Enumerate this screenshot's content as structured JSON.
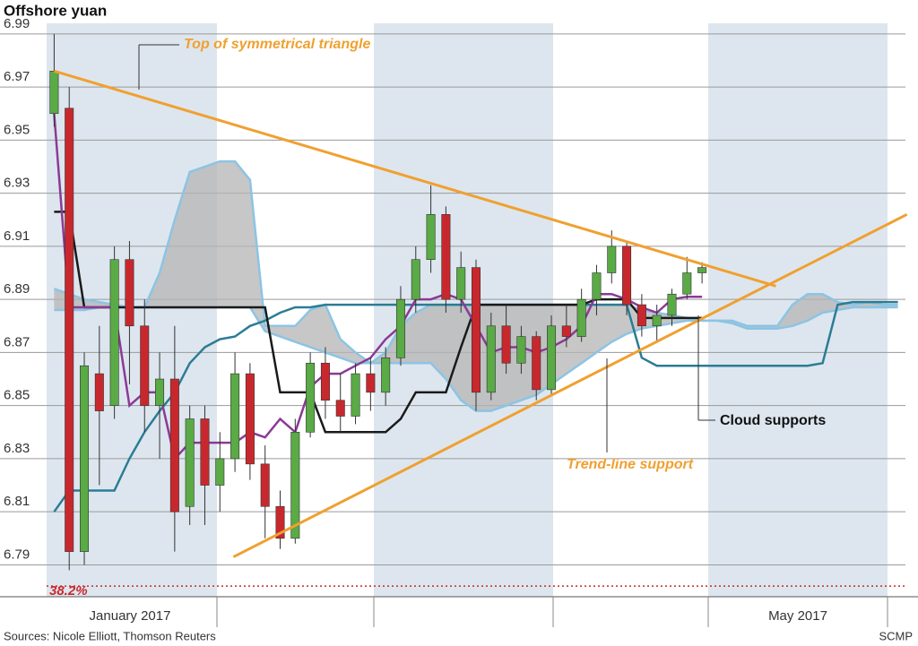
{
  "chart_data": {
    "type": "candlestick",
    "title": "Offshore yuan",
    "source": "Sources: Nicole Elliott, Thomson Reuters",
    "credit": "SCMP",
    "x_labels": [
      "January 2017",
      "May 2017"
    ],
    "ylim": [
      6.778,
      6.994
    ],
    "yticks": [
      6.79,
      6.81,
      6.83,
      6.85,
      6.87,
      6.89,
      6.91,
      6.93,
      6.95,
      6.97,
      6.99
    ],
    "grid": true,
    "categories": [
      null,
      null,
      null,
      null,
      null,
      null,
      null,
      null,
      null,
      null,
      null,
      null,
      null,
      null,
      null,
      null,
      null,
      null,
      null,
      null,
      null,
      null,
      null,
      null,
      null,
      null,
      null,
      null,
      null,
      null,
      null,
      null,
      null,
      null,
      null,
      null,
      null,
      null,
      null,
      null,
      null,
      null,
      null,
      null,
      null,
      null,
      null,
      null,
      null,
      null,
      null,
      null,
      null,
      null,
      null,
      null,
      null
    ],
    "up_color": "#5aaa46",
    "down_color": "#c8282d",
    "open": [
      6.96,
      6.962,
      6.795,
      6.862,
      6.85,
      6.905,
      6.88,
      6.85,
      6.86,
      6.812,
      6.845,
      6.82,
      6.83,
      6.862,
      6.828,
      6.812,
      6.8,
      6.84,
      6.866,
      6.852,
      6.846,
      6.862,
      6.855,
      6.868,
      6.89,
      6.905,
      6.922,
      6.89,
      6.902,
      6.855,
      6.88,
      6.866,
      6.876,
      6.856,
      6.88,
      6.876,
      6.89,
      6.9,
      6.91,
      6.888,
      6.88,
      6.884,
      6.892,
      6.9,
      null,
      null,
      null,
      null,
      null,
      null,
      null,
      null,
      null,
      null,
      null,
      null,
      null
    ],
    "high": [
      6.99,
      6.97,
      6.87,
      6.88,
      6.91,
      6.912,
      6.89,
      6.87,
      6.88,
      6.85,
      6.85,
      6.84,
      6.87,
      6.866,
      6.835,
      6.818,
      6.845,
      6.87,
      6.872,
      6.862,
      6.866,
      6.868,
      6.872,
      6.895,
      6.91,
      6.933,
      6.925,
      6.908,
      6.905,
      6.885,
      6.888,
      6.88,
      6.878,
      6.884,
      6.888,
      6.894,
      6.903,
      6.916,
      6.912,
      6.892,
      6.888,
      6.894,
      6.906,
      6.904,
      null,
      null,
      null,
      null,
      null,
      null,
      null,
      null,
      null,
      null,
      null,
      null,
      null
    ],
    "low": [
      6.955,
      6.788,
      6.79,
      6.82,
      6.845,
      6.858,
      6.84,
      6.83,
      6.795,
      6.805,
      6.805,
      6.81,
      6.825,
      6.822,
      6.8,
      6.796,
      6.798,
      6.838,
      6.845,
      6.84,
      6.843,
      6.848,
      6.85,
      6.865,
      6.885,
      6.9,
      6.885,
      6.885,
      6.848,
      6.852,
      6.862,
      6.862,
      6.852,
      6.854,
      6.872,
      6.874,
      6.884,
      6.896,
      6.884,
      6.876,
      6.874,
      6.88,
      6.89,
      6.896,
      null,
      null,
      null,
      null,
      null,
      null,
      null,
      null,
      null,
      null,
      null,
      null,
      null
    ],
    "close": [
      6.976,
      6.795,
      6.865,
      6.848,
      6.905,
      6.88,
      6.85,
      6.86,
      6.81,
      6.845,
      6.82,
      6.83,
      6.862,
      6.828,
      6.812,
      6.8,
      6.84,
      6.866,
      6.852,
      6.846,
      6.862,
      6.855,
      6.868,
      6.89,
      6.905,
      6.922,
      6.89,
      6.902,
      6.855,
      6.88,
      6.866,
      6.876,
      6.856,
      6.88,
      6.876,
      6.89,
      6.9,
      6.91,
      6.888,
      6.88,
      6.884,
      6.892,
      6.9,
      6.902,
      null,
      null,
      null,
      null,
      null,
      null,
      null,
      null,
      null,
      null,
      null,
      null,
      null
    ],
    "cloud": {
      "fill": "#b4b4b4",
      "edge": "#8cc4e4",
      "top": [
        6.894,
        6.892,
        6.89,
        6.889,
        6.888,
        6.887,
        6.887,
        6.9,
        6.92,
        6.938,
        6.94,
        6.942,
        6.942,
        6.935,
        6.88,
        6.88,
        6.88,
        6.886,
        6.888,
        6.875,
        6.87,
        6.866,
        6.87,
        6.88,
        6.885,
        6.888,
        6.888,
        6.888,
        6.888,
        6.888,
        6.888,
        6.888,
        6.888,
        6.888,
        6.888,
        6.888,
        6.888,
        6.888,
        6.888,
        6.886,
        6.885,
        6.884,
        6.883,
        6.882,
        6.882,
        6.882,
        6.88,
        6.88,
        6.88,
        6.888,
        6.892,
        6.892,
        6.889,
        6.888,
        6.889,
        6.888,
        6.888
      ],
      "bottom": [
        6.886,
        6.886,
        6.886,
        6.887,
        6.887,
        6.887,
        6.887,
        6.887,
        6.887,
        6.887,
        6.887,
        6.887,
        6.887,
        6.887,
        6.878,
        6.876,
        6.874,
        6.872,
        6.87,
        6.868,
        6.866,
        6.866,
        6.866,
        6.866,
        6.866,
        6.866,
        6.86,
        6.852,
        6.848,
        6.848,
        6.85,
        6.852,
        6.854,
        6.858,
        6.862,
        6.866,
        6.87,
        6.874,
        6.877,
        6.879,
        6.88,
        6.881,
        6.882,
        6.882,
        6.882,
        6.881,
        6.879,
        6.879,
        6.879,
        6.88,
        6.882,
        6.885,
        6.886,
        6.887,
        6.887,
        6.887,
        6.887
      ]
    },
    "lines": [
      {
        "color": "#2b7c95",
        "values": [
          6.81,
          6.818,
          6.818,
          6.818,
          6.818,
          6.83,
          6.84,
          6.848,
          6.855,
          6.866,
          6.872,
          6.875,
          6.876,
          6.88,
          6.882,
          6.885,
          6.887,
          6.887,
          6.888,
          6.888,
          6.888,
          6.888,
          6.888,
          6.888,
          6.888,
          6.888,
          6.888,
          6.888,
          6.888,
          6.888,
          6.888,
          6.888,
          6.888,
          6.888,
          6.888,
          6.888,
          6.888,
          6.888,
          6.888,
          6.868,
          6.865,
          6.865,
          6.865,
          6.865,
          6.865,
          6.865,
          6.865,
          6.865,
          6.865,
          6.865,
          6.865,
          6.866,
          6.888,
          6.889,
          6.889,
          6.889,
          6.889
        ]
      },
      {
        "color": "#1a1a1a",
        "values": [
          6.923,
          6.923,
          6.887,
          6.887,
          6.887,
          6.887,
          6.887,
          6.887,
          6.887,
          6.887,
          6.887,
          6.887,
          6.887,
          6.887,
          6.887,
          6.855,
          6.855,
          6.855,
          6.84,
          6.84,
          6.84,
          6.84,
          6.84,
          6.845,
          6.855,
          6.855,
          6.855,
          6.872,
          6.888,
          6.888,
          6.888,
          6.888,
          6.888,
          6.888,
          6.888,
          6.888,
          6.89,
          6.89,
          6.89,
          6.883,
          6.883,
          6.883,
          6.883,
          6.883,
          null,
          null,
          null,
          null,
          null,
          null,
          null,
          null,
          null,
          null,
          null,
          null,
          null
        ]
      },
      {
        "color": "#8b3a96",
        "values": [
          6.96,
          6.887,
          6.887,
          6.887,
          6.887,
          6.85,
          6.855,
          6.855,
          6.83,
          6.836,
          6.836,
          6.836,
          6.836,
          6.84,
          6.838,
          6.845,
          6.84,
          6.857,
          6.862,
          6.862,
          6.865,
          6.868,
          6.875,
          6.88,
          6.89,
          6.89,
          6.892,
          6.89,
          6.88,
          6.87,
          6.872,
          6.872,
          6.87,
          6.872,
          6.875,
          6.88,
          6.892,
          6.892,
          6.89,
          6.887,
          6.885,
          6.89,
          6.891,
          6.891,
          null,
          null,
          null,
          null,
          null,
          null,
          null,
          null,
          null,
          null,
          null,
          null,
          null
        ]
      }
    ],
    "trend_lines": [
      {
        "label": "Top of symmetrical triangle",
        "color": "#f0a030",
        "x": [
          0,
          47.9
        ],
        "y": [
          6.976,
          6.895
        ]
      },
      {
        "label": "Trend-line support",
        "color": "#f0a030",
        "x": [
          11.9,
          56.6
        ],
        "y": [
          6.793,
          6.922
        ]
      }
    ],
    "annotations": [
      {
        "label": "Cloud supports"
      }
    ],
    "retracement": {
      "label": "38.2%",
      "level": 6.782,
      "color": "#c8282d"
    }
  }
}
